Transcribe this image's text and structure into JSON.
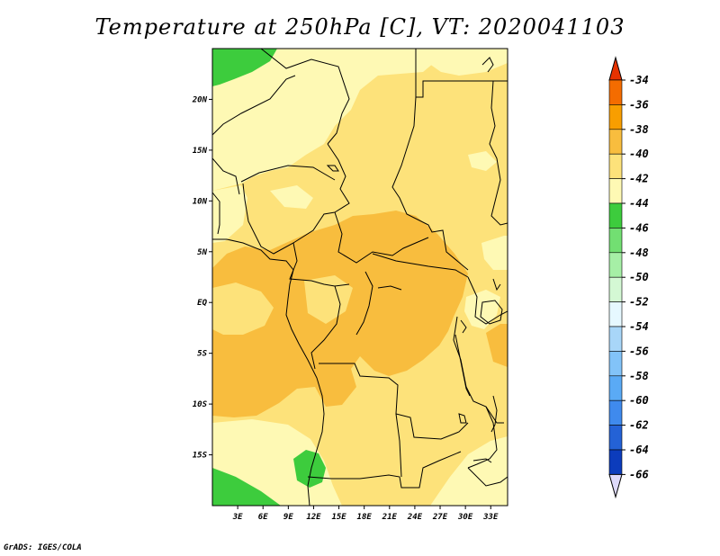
{
  "title": "Temperature at 250hPa [C], VT: 2020041103",
  "footer": "GrADS: IGES/COLA",
  "map": {
    "lon_range": [
      0,
      35
    ],
    "lat_range": [
      -20,
      25
    ],
    "lon_ticks": [
      {
        "value": 3,
        "label": "3E"
      },
      {
        "value": 6,
        "label": "6E"
      },
      {
        "value": 9,
        "label": "9E"
      },
      {
        "value": 12,
        "label": "12E"
      },
      {
        "value": 15,
        "label": "15E"
      },
      {
        "value": 18,
        "label": "18E"
      },
      {
        "value": 21,
        "label": "21E"
      },
      {
        "value": 24,
        "label": "24E"
      },
      {
        "value": 27,
        "label": "27E"
      },
      {
        "value": 30,
        "label": "30E"
      },
      {
        "value": 33,
        "label": "33E"
      }
    ],
    "lat_ticks": [
      {
        "value": 20,
        "label": "20N"
      },
      {
        "value": 15,
        "label": "15N"
      },
      {
        "value": 10,
        "label": "10N"
      },
      {
        "value": 5,
        "label": "5N"
      },
      {
        "value": 0,
        "label": "EQ"
      },
      {
        "value": -5,
        "label": "5S"
      },
      {
        "value": -10,
        "label": "10S"
      },
      {
        "value": -15,
        "label": "15S"
      }
    ]
  },
  "colorbar": {
    "labels": [
      "-34",
      "-36",
      "-38",
      "-40",
      "-42",
      "-44",
      "-46",
      "-48",
      "-50",
      "-52",
      "-54",
      "-56",
      "-58",
      "-60",
      "-62",
      "-64",
      "-66"
    ],
    "colors": [
      "#e63200",
      "#f46c00",
      "#f89e00",
      "#f8bd3e",
      "#fde27a",
      "#fef9b4",
      "#3dcc3d",
      "#72df72",
      "#a6efa6",
      "#d4f8d4",
      "#e6f8ff",
      "#a8d6f8",
      "#82c3f8",
      "#5aaaf5",
      "#3f8aed",
      "#2462d6",
      "#0c3cbc",
      "#0e0e72",
      "#ddd9fa"
    ]
  }
}
